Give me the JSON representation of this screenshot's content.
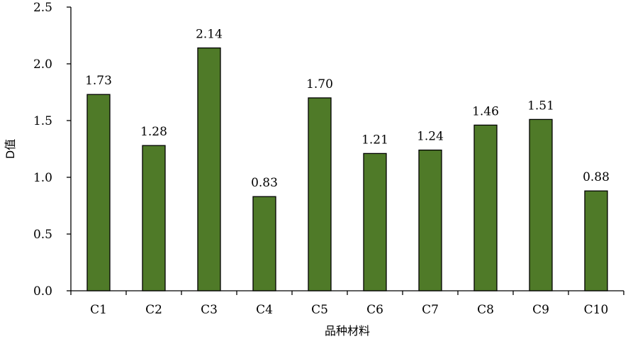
{
  "chart_data": {
    "type": "bar",
    "title": "",
    "xlabel": "品种材料",
    "ylabel": "D值",
    "ylim": [
      0,
      2.5
    ],
    "yticks": [
      "0.0",
      "0.5",
      "1.0",
      "1.5",
      "2.0",
      "2.5"
    ],
    "categories": [
      "C1",
      "C2",
      "C3",
      "C4",
      "C5",
      "C6",
      "C7",
      "C8",
      "C9",
      "C10"
    ],
    "values": [
      1.73,
      1.28,
      2.14,
      0.83,
      1.7,
      1.21,
      1.24,
      1.46,
      1.51,
      0.88
    ],
    "data_labels": [
      "1.73",
      "1.28",
      "2.14",
      "0.83",
      "1.70",
      "1.21",
      "1.24",
      "1.46",
      "1.51",
      "0.88"
    ],
    "bar_color": "#4f7a28",
    "grid": false,
    "legend": "none"
  }
}
